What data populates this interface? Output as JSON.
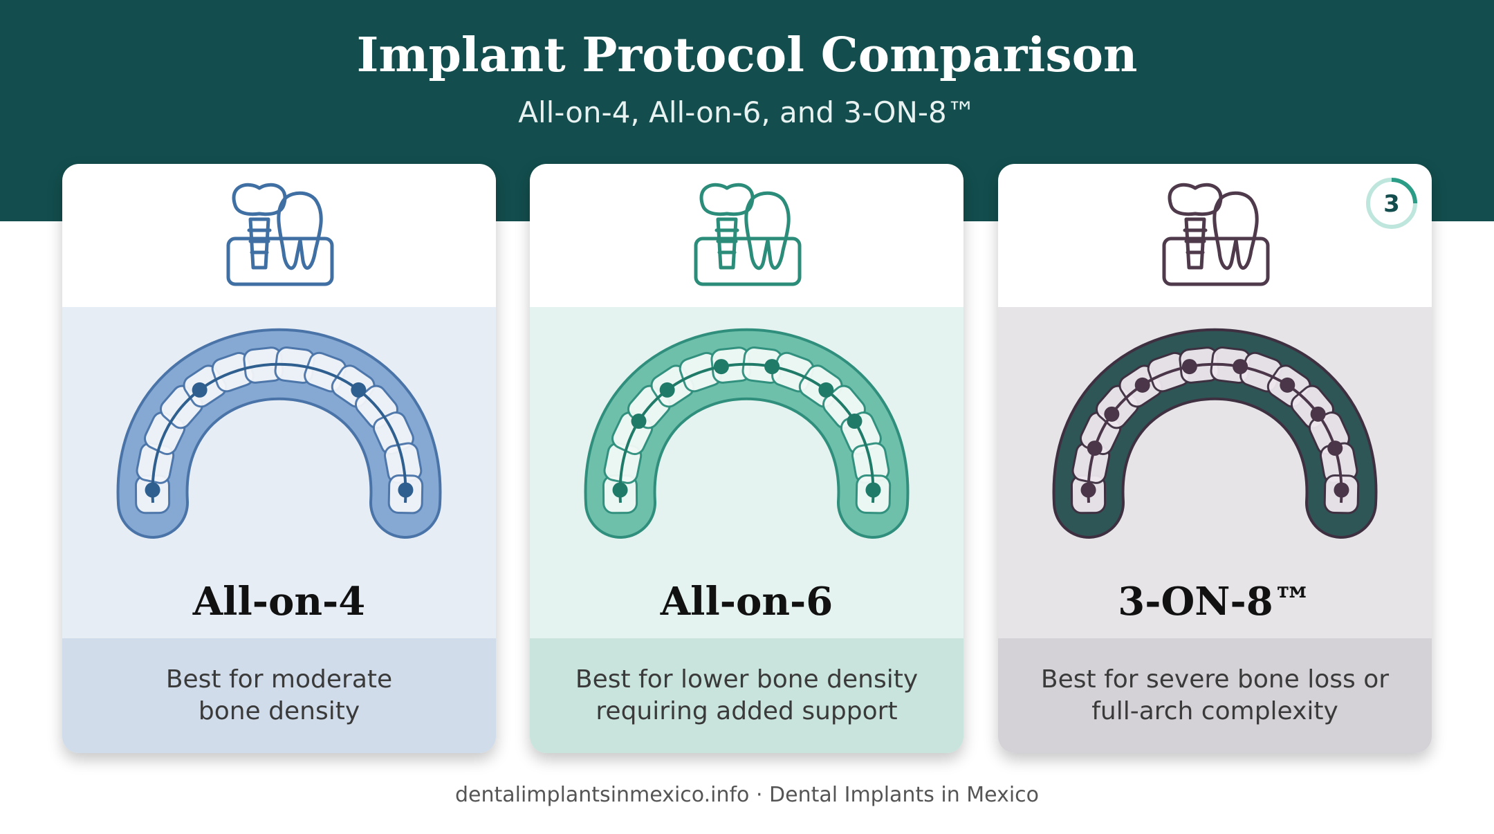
{
  "header": {
    "title": "Implant Protocol Comparison",
    "subtitle": "All-on-4, All-on-6, and 3-ON-8™"
  },
  "cards": [
    {
      "title": "All-on-4",
      "description": [
        "Best for moderate",
        "bone density"
      ]
    },
    {
      "title": "All-on-6",
      "description": [
        "Best for lower bone density",
        "requiring added support"
      ]
    },
    {
      "title": "3-ON-8™",
      "description": [
        "Best for severe bone loss or",
        "full-arch complexity"
      ],
      "badge": "3"
    }
  ],
  "footer": "dentalimplantsinmexico.info · Dental Implants in Mexico"
}
